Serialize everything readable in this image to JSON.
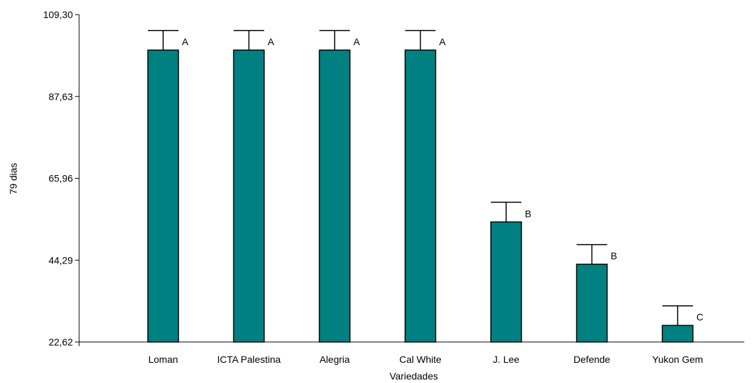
{
  "chart_data": {
    "type": "bar",
    "xlabel": "Variedades",
    "ylabel": "79 dias",
    "categories": [
      "Loman",
      "ICTA Palestina",
      "Alegria",
      "Cal White",
      "J. Lee",
      "Defende",
      "Yukon Gem"
    ],
    "values": [
      99.9,
      99.9,
      99.9,
      99.9,
      54.4,
      43.2,
      27.0
    ],
    "error_upper": [
      105.1,
      105.1,
      105.1,
      105.1,
      59.6,
      48.4,
      32.2
    ],
    "letters": [
      "A",
      "A",
      "A",
      "A",
      "B",
      "B",
      "C"
    ],
    "yticks": [
      "22,62",
      "44,29",
      "65,96",
      "87,63",
      "109,30"
    ],
    "ylim": [
      22.62,
      109.3
    ],
    "grid": false,
    "legend": "none",
    "bar_color": "#008080"
  }
}
